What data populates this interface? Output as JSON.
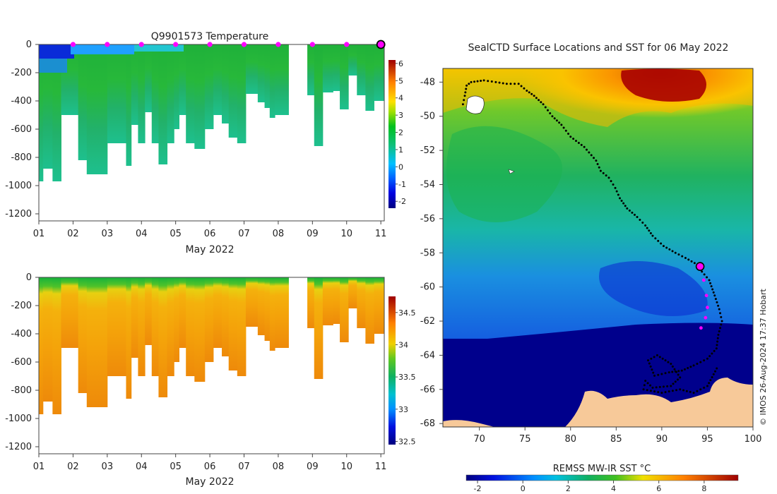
{
  "chart_data": [
    {
      "type": "heatmap",
      "title": "Q9901573  Temperature",
      "xlabel": "May 2022",
      "ylabel": "",
      "x_ticks": [
        "01",
        "02",
        "03",
        "04",
        "05",
        "06",
        "07",
        "08",
        "09",
        "10",
        "11"
      ],
      "xlim": [
        1,
        11.1
      ],
      "y_ticks": [
        0,
        -200,
        -400,
        -600,
        -800,
        -1000,
        -1200
      ],
      "ylim": [
        -1250,
        0
      ],
      "colorbar": {
        "ticks": [
          6,
          5,
          4,
          3,
          2,
          1,
          0,
          -1,
          -2
        ],
        "range": [
          -2.4,
          6.2
        ]
      },
      "profile_marker_days": [
        2,
        3,
        4,
        5,
        6,
        7,
        8,
        9,
        10
      ],
      "current_marker_day": 11,
      "profiles": [
        {
          "day": 1.0,
          "depth": 970
        },
        {
          "day": 1.12,
          "depth": 880
        },
        {
          "day": 1.25,
          "depth": 880
        },
        {
          "day": 1.4,
          "depth": 970
        },
        {
          "day": 1.65,
          "depth": 500
        },
        {
          "day": 1.95,
          "depth": 500
        },
        {
          "day": 2.15,
          "depth": 820
        },
        {
          "day": 2.4,
          "depth": 920
        },
        {
          "day": 2.7,
          "depth": 920
        },
        {
          "day": 3.0,
          "depth": 700
        },
        {
          "day": 3.3,
          "depth": 700
        },
        {
          "day": 3.55,
          "depth": 860
        },
        {
          "day": 3.7,
          "depth": 570
        },
        {
          "day": 3.9,
          "depth": 700
        },
        {
          "day": 4.1,
          "depth": 480
        },
        {
          "day": 4.3,
          "depth": 700
        },
        {
          "day": 4.5,
          "depth": 850
        },
        {
          "day": 4.75,
          "depth": 700
        },
        {
          "day": 4.95,
          "depth": 600
        },
        {
          "day": 5.1,
          "depth": 500
        },
        {
          "day": 5.3,
          "depth": 700
        },
        {
          "day": 5.55,
          "depth": 740
        },
        {
          "day": 5.85,
          "depth": 600
        },
        {
          "day": 6.1,
          "depth": 500
        },
        {
          "day": 6.35,
          "depth": 560
        },
        {
          "day": 6.55,
          "depth": 660
        },
        {
          "day": 6.8,
          "depth": 700
        },
        {
          "day": 7.05,
          "depth": 350
        },
        {
          "day": 7.4,
          "depth": 410
        },
        {
          "day": 7.6,
          "depth": 450
        },
        {
          "day": 7.75,
          "depth": 520
        },
        {
          "day": 7.9,
          "depth": 500
        },
        {
          "day": 8.1,
          "depth": 500
        },
        {
          "day": 8.3,
          "depth": 0
        },
        {
          "day": 8.85,
          "depth": 360
        },
        {
          "day": 9.05,
          "depth": 720
        },
        {
          "day": 9.3,
          "depth": 340
        },
        {
          "day": 9.6,
          "depth": 330
        },
        {
          "day": 9.8,
          "depth": 460
        },
        {
          "day": 10.05,
          "depth": 220
        },
        {
          "day": 10.3,
          "depth": 360
        },
        {
          "day": 10.55,
          "depth": 470
        },
        {
          "day": 10.8,
          "depth": 400
        },
        {
          "day": 11.05,
          "depth": 400
        }
      ]
    },
    {
      "type": "heatmap",
      "title": "",
      "xlabel": "May 2022",
      "ylabel": "",
      "x_ticks": [
        "01",
        "02",
        "03",
        "04",
        "05",
        "06",
        "07",
        "08",
        "09",
        "10",
        "11"
      ],
      "xlim": [
        1,
        11.1
      ],
      "y_ticks": [
        0,
        -200,
        -400,
        -600,
        -800,
        -1000,
        -1200
      ],
      "ylim": [
        -1250,
        0
      ],
      "colorbar": {
        "ticks": [
          34.5,
          34,
          33.5,
          33,
          32.5
        ],
        "range": [
          32.45,
          34.75
        ]
      }
    },
    {
      "type": "heatmap",
      "title": "SealCTD Surface Locations and SST for 06 May 2022",
      "xlabel": "",
      "ylabel": "",
      "x_ticks": [
        "70",
        "75",
        "80",
        "85",
        "90",
        "95",
        "100"
      ],
      "xlim": [
        66,
        100
      ],
      "y_ticks": [
        "-48",
        "-50",
        "-52",
        "-54",
        "-56",
        "-58",
        "-60",
        "-62",
        "-64",
        "-66",
        "-68"
      ],
      "ylim": [
        -68.2,
        -47.2
      ],
      "colorbar_label": "REMSS MW-IR SST °C",
      "colorbar": {
        "ticks": [
          "-2",
          "0",
          "2",
          "4",
          "6",
          "8"
        ],
        "range": [
          -2.5,
          9.5
        ]
      },
      "current_position": {
        "lon": 94.2,
        "lat": -58.8
      },
      "recent_positions": [
        {
          "lon": 94.6,
          "lat": -59.6
        },
        {
          "lon": 94.9,
          "lat": -60.5
        },
        {
          "lon": 95.0,
          "lat": -61.2
        },
        {
          "lon": 94.8,
          "lat": -61.8
        },
        {
          "lon": 94.3,
          "lat": -62.4
        }
      ],
      "track": [
        {
          "lon": 68.2,
          "lat": -49.3
        },
        {
          "lon": 68.4,
          "lat": -48.8
        },
        {
          "lon": 68.6,
          "lat": -48.2
        },
        {
          "lon": 69.1,
          "lat": -48.0
        },
        {
          "lon": 70.5,
          "lat": -47.9
        },
        {
          "lon": 71.8,
          "lat": -48.0
        },
        {
          "lon": 73.0,
          "lat": -48.1
        },
        {
          "lon": 74.3,
          "lat": -48.1
        },
        {
          "lon": 75.2,
          "lat": -48.5
        },
        {
          "lon": 76.0,
          "lat": -48.8
        },
        {
          "lon": 77.0,
          "lat": -49.3
        },
        {
          "lon": 78.0,
          "lat": -50.0
        },
        {
          "lon": 79.0,
          "lat": -50.5
        },
        {
          "lon": 80.0,
          "lat": -51.2
        },
        {
          "lon": 81.5,
          "lat": -51.8
        },
        {
          "lon": 82.8,
          "lat": -52.6
        },
        {
          "lon": 83.3,
          "lat": -53.2
        },
        {
          "lon": 84.2,
          "lat": -53.6
        },
        {
          "lon": 84.9,
          "lat": -54.2
        },
        {
          "lon": 85.4,
          "lat": -54.8
        },
        {
          "lon": 86.2,
          "lat": -55.4
        },
        {
          "lon": 87.3,
          "lat": -55.9
        },
        {
          "lon": 88.2,
          "lat": -56.4
        },
        {
          "lon": 89.0,
          "lat": -57.0
        },
        {
          "lon": 90.2,
          "lat": -57.6
        },
        {
          "lon": 91.5,
          "lat": -58.0
        },
        {
          "lon": 92.6,
          "lat": -58.3
        },
        {
          "lon": 93.6,
          "lat": -58.6
        },
        {
          "lon": 95.2,
          "lat": -59.6
        },
        {
          "lon": 95.8,
          "lat": -60.5
        },
        {
          "lon": 96.3,
          "lat": -61.3
        },
        {
          "lon": 96.6,
          "lat": -62.0
        },
        {
          "lon": 96.2,
          "lat": -62.8
        },
        {
          "lon": 96.0,
          "lat": -63.6
        },
        {
          "lon": 95.0,
          "lat": -64.2
        },
        {
          "lon": 93.5,
          "lat": -64.6
        },
        {
          "lon": 92.2,
          "lat": -64.9
        },
        {
          "lon": 90.8,
          "lat": -65.0
        },
        {
          "lon": 89.2,
          "lat": -65.2
        },
        {
          "lon": 88.5,
          "lat": -64.3
        },
        {
          "lon": 89.5,
          "lat": -64.0
        },
        {
          "lon": 91.0,
          "lat": -64.5
        },
        {
          "lon": 92.0,
          "lat": -65.3
        },
        {
          "lon": 91.0,
          "lat": -65.8
        },
        {
          "lon": 89.0,
          "lat": -65.9
        },
        {
          "lon": 88.2,
          "lat": -65.5
        },
        {
          "lon": 88.0,
          "lat": -66.0
        },
        {
          "lon": 90.0,
          "lat": -66.2
        },
        {
          "lon": 92.0,
          "lat": -66.0
        },
        {
          "lon": 93.5,
          "lat": -66.2
        },
        {
          "lon": 95.0,
          "lat": -65.8
        },
        {
          "lon": 96.2,
          "lat": -64.6
        }
      ]
    }
  ],
  "footer_credit": "© IMOS 26-Aug-2024 17:37 Hobart",
  "colors": {
    "land": "#f7c999",
    "marker_magenta": "#ff00ff",
    "track": "#000000"
  }
}
